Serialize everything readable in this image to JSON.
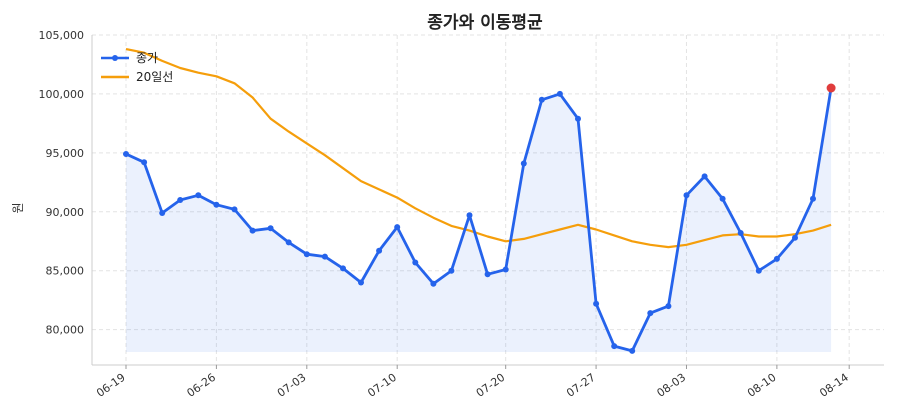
{
  "chart_data": {
    "type": "line",
    "title": "종가와 이동평균",
    "ylabel": "원",
    "xlabel": "",
    "ylim": [
      77000,
      105000
    ],
    "grid": true,
    "legend": "top-left",
    "yticks": [
      80000,
      85000,
      90000,
      95000,
      100000,
      105000
    ],
    "ytick_labels": [
      "80,000",
      "85,000",
      "90,000",
      "95,000",
      "100,000",
      "105,000"
    ],
    "xticks": [
      {
        "label": "06-19",
        "index": 0
      },
      {
        "label": "06-26",
        "index": 5
      },
      {
        "label": "07-03",
        "index": 10
      },
      {
        "label": "07-10",
        "index": 15
      },
      {
        "label": "07-20",
        "index": 21
      },
      {
        "label": "07-27",
        "index": 26
      },
      {
        "label": "08-03",
        "index": 31
      },
      {
        "label": "08-10",
        "index": 36
      },
      {
        "label": "08-14",
        "index": 40
      }
    ],
    "series": [
      {
        "name": "종가",
        "color": "#2563eb",
        "values": [
          94900,
          94200,
          89900,
          91000,
          91400,
          90600,
          90200,
          88400,
          88600,
          87400,
          86400,
          86200,
          85200,
          84000,
          86700,
          88700,
          85700,
          83900,
          85000,
          89700,
          84700,
          85100,
          94100,
          99500,
          100000,
          97900,
          82200,
          78600,
          78200,
          81400,
          82000,
          91400,
          93000,
          91100,
          88200,
          85000,
          86000,
          87800,
          91100,
          100500
        ]
      },
      {
        "name": "20일선",
        "color": "#f59e0b",
        "values": [
          103800,
          103500,
          102800,
          102200,
          101800,
          101500,
          100900,
          99700,
          97900,
          96800,
          95800,
          94800,
          93700,
          92600,
          91900,
          91200,
          90300,
          89500,
          88800,
          88400,
          87900,
          87500,
          87700,
          88100,
          88500,
          88900,
          88500,
          88000,
          87500,
          87200,
          87000,
          87200,
          87600,
          88000,
          88100,
          87900,
          87900,
          88100,
          88400,
          88900
        ]
      }
    ],
    "highlight": {
      "index": 39,
      "value": 100500,
      "color": "#e03c3c"
    },
    "colors": {
      "fill": "#2563eb",
      "grid": "#e3e3e3",
      "axis": "#cccccc"
    }
  }
}
